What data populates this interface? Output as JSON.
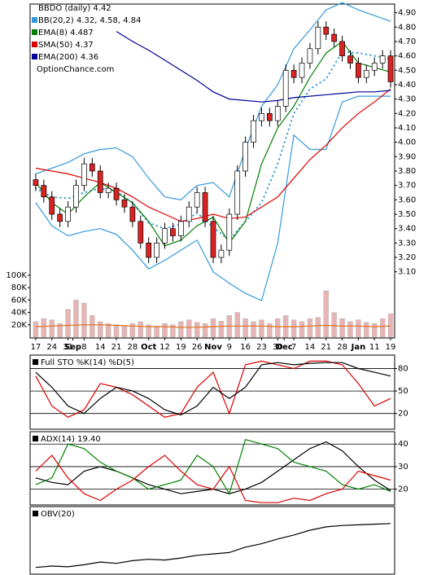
{
  "chart_data": [
    {
      "type": "candlestick",
      "title": "BBDO (daily) 4.42",
      "watermark": "OptionChance.com",
      "x": [
        0,
        0.5,
        1,
        1.5,
        2,
        2.5,
        3,
        3.5,
        4,
        4.5,
        5,
        5.5,
        6,
        6.5,
        7,
        7.5,
        8,
        8.5,
        9,
        9.5,
        10,
        10.5,
        11,
        11.5,
        12,
        12.5,
        13,
        13.5,
        14,
        14.5,
        15,
        15.5,
        16,
        16.5,
        17,
        17.5,
        18,
        18.5,
        19,
        19.5,
        20,
        20.5,
        21,
        21.5,
        22
      ],
      "open": [
        3.74,
        3.7,
        3.62,
        3.5,
        3.45,
        3.55,
        3.7,
        3.85,
        3.8,
        3.65,
        3.68,
        3.6,
        3.55,
        3.45,
        3.3,
        3.2,
        3.3,
        3.4,
        3.35,
        3.45,
        3.55,
        3.65,
        3.45,
        3.2,
        3.25,
        3.5,
        3.8,
        4.0,
        4.15,
        4.2,
        4.15,
        4.25,
        4.5,
        4.45,
        4.55,
        4.65,
        4.8,
        4.75,
        4.7,
        4.6,
        4.55,
        4.45,
        4.5,
        4.55,
        4.6
      ],
      "high": [
        3.78,
        3.74,
        3.66,
        3.54,
        3.59,
        3.74,
        3.89,
        3.89,
        3.84,
        3.72,
        3.72,
        3.64,
        3.59,
        3.49,
        3.34,
        3.34,
        3.44,
        3.44,
        3.49,
        3.59,
        3.69,
        3.69,
        3.49,
        3.29,
        3.54,
        3.84,
        4.04,
        4.19,
        4.24,
        4.24,
        4.29,
        4.54,
        4.54,
        4.59,
        4.69,
        4.84,
        4.84,
        4.79,
        4.74,
        4.64,
        4.59,
        4.54,
        4.59,
        4.64,
        4.64
      ],
      "low": [
        3.66,
        3.58,
        3.46,
        3.41,
        3.41,
        3.51,
        3.66,
        3.76,
        3.61,
        3.61,
        3.56,
        3.51,
        3.41,
        3.26,
        3.16,
        3.16,
        3.26,
        3.31,
        3.31,
        3.41,
        3.51,
        3.41,
        3.16,
        3.16,
        3.21,
        3.46,
        3.76,
        3.96,
        4.11,
        4.11,
        4.11,
        4.21,
        4.41,
        4.41,
        4.51,
        4.61,
        4.71,
        4.66,
        4.56,
        4.51,
        4.41,
        4.41,
        4.46,
        4.51,
        4.38
      ],
      "close": [
        3.7,
        3.62,
        3.5,
        3.45,
        3.55,
        3.7,
        3.85,
        3.8,
        3.65,
        3.68,
        3.6,
        3.55,
        3.45,
        3.3,
        3.2,
        3.3,
        3.4,
        3.35,
        3.45,
        3.55,
        3.65,
        3.45,
        3.2,
        3.25,
        3.5,
        3.8,
        4.0,
        4.15,
        4.2,
        4.15,
        4.25,
        4.5,
        4.45,
        4.55,
        4.65,
        4.8,
        4.75,
        4.7,
        4.6,
        4.55,
        4.45,
        4.5,
        4.55,
        4.6,
        4.42
      ],
      "up_color": "#ffffff",
      "down_color": "#dd2222",
      "xlim": [
        -0.35,
        22.25
      ],
      "ylim": [
        2.64,
        4.96
      ],
      "yticks": [
        {
          "value": 3.1,
          "label": "3.10"
        },
        {
          "value": 3.2,
          "label": "3.20"
        },
        {
          "value": 3.3,
          "label": "3.30"
        },
        {
          "value": 3.4,
          "label": "3.40"
        },
        {
          "value": 3.5,
          "label": "3.50"
        },
        {
          "value": 3.6,
          "label": "3.60"
        },
        {
          "value": 3.7,
          "label": "3.70"
        },
        {
          "value": 3.8,
          "label": "3.80"
        },
        {
          "value": 3.9,
          "label": "3.90"
        },
        {
          "value": 4.0,
          "label": "4.00"
        },
        {
          "value": 4.1,
          "label": "4.10"
        },
        {
          "value": 4.2,
          "label": "4.20"
        },
        {
          "value": 4.3,
          "label": "4.30"
        },
        {
          "value": 4.4,
          "label": "4.40"
        },
        {
          "value": 4.5,
          "label": "4.50"
        },
        {
          "value": 4.6,
          "label": "4.60"
        },
        {
          "value": 4.7,
          "label": "4.70"
        },
        {
          "value": 4.8,
          "label": "4.80"
        },
        {
          "value": 4.9,
          "label": "4.90"
        }
      ],
      "xticks": [
        {
          "value": 0,
          "label": "17"
        },
        {
          "value": 1,
          "label": "24"
        },
        {
          "value": 2,
          "label": "31"
        },
        {
          "value": 2.3,
          "label": "Sep"
        },
        {
          "value": 3,
          "label": "8"
        },
        {
          "value": 4,
          "label": "14"
        },
        {
          "value": 5,
          "label": "21"
        },
        {
          "value": 6,
          "label": "28"
        },
        {
          "value": 7,
          "label": "Oct"
        },
        {
          "value": 8,
          "label": "12"
        },
        {
          "value": 9,
          "label": "19"
        },
        {
          "value": 10,
          "label": "26"
        },
        {
          "value": 11,
          "label": "Nov"
        },
        {
          "value": 12,
          "label": "9"
        },
        {
          "value": 13,
          "label": "16"
        },
        {
          "value": 14,
          "label": "23"
        },
        {
          "value": 15,
          "label": "30"
        },
        {
          "value": 15.4,
          "label": "Dec"
        },
        {
          "value": 16,
          "label": "7"
        },
        {
          "value": 17,
          "label": "14"
        },
        {
          "value": 18,
          "label": "21"
        },
        {
          "value": 19,
          "label": "28"
        },
        {
          "value": 20,
          "label": "Jan"
        },
        {
          "value": 21,
          "label": "11"
        },
        {
          "value": 22,
          "label": "19"
        }
      ],
      "overlay_x": [
        0,
        1,
        2,
        3,
        4,
        5,
        6,
        7,
        8,
        9,
        10,
        11,
        12,
        13,
        14,
        15,
        16,
        17,
        18,
        19,
        20,
        21,
        22
      ],
      "bollinger": {
        "name": "BB(20,2) 4.32, 4.58, 4.84",
        "color": "#3399dd",
        "upper": [
          3.78,
          3.82,
          3.86,
          3.92,
          3.95,
          3.96,
          3.9,
          3.75,
          3.62,
          3.6,
          3.7,
          3.72,
          3.62,
          3.95,
          4.25,
          4.4,
          4.65,
          4.78,
          4.92,
          4.97,
          4.92,
          4.88,
          4.84
        ],
        "middle": [
          3.68,
          3.62,
          3.61,
          3.65,
          3.68,
          3.66,
          3.58,
          3.44,
          3.4,
          3.43,
          3.51,
          3.41,
          3.32,
          3.45,
          3.58,
          3.85,
          4.2,
          4.37,
          4.44,
          4.63,
          4.62,
          4.6,
          4.58
        ],
        "lower": [
          3.58,
          3.42,
          3.35,
          3.38,
          3.4,
          3.36,
          3.25,
          3.12,
          3.18,
          3.25,
          3.32,
          3.1,
          3.02,
          2.95,
          2.9,
          3.3,
          4.05,
          3.95,
          3.95,
          4.28,
          4.32,
          4.32,
          4.32
        ]
      },
      "lines": [
        {
          "name": "EMA(8) 4.487",
          "color": "#008000",
          "values": [
            3.72,
            3.58,
            3.5,
            3.62,
            3.72,
            3.65,
            3.58,
            3.45,
            3.28,
            3.32,
            3.42,
            3.48,
            3.3,
            3.45,
            3.85,
            4.1,
            4.25,
            4.45,
            4.62,
            4.7,
            4.55,
            4.52,
            4.487
          ]
        },
        {
          "name": "SMA(50) 4.37",
          "color": "#dd0000",
          "values": [
            3.82,
            3.8,
            3.78,
            3.75,
            3.72,
            3.68,
            3.62,
            3.55,
            3.5,
            3.45,
            3.47,
            3.5,
            3.47,
            3.48,
            3.55,
            3.62,
            3.75,
            3.88,
            3.98,
            4.1,
            4.2,
            4.28,
            4.37
          ]
        },
        {
          "name": "EMA(200) 4.36",
          "color": "#000099",
          "values": [
            null,
            null,
            null,
            null,
            null,
            4.77,
            4.7,
            4.64,
            4.57,
            4.5,
            4.43,
            4.35,
            4.3,
            4.29,
            4.28,
            4.29,
            4.31,
            4.32,
            4.33,
            4.34,
            4.35,
            4.35,
            4.36
          ]
        }
      ]
    },
    {
      "type": "bar",
      "x": [
        0,
        0.5,
        1,
        1.5,
        2,
        2.5,
        3,
        3.5,
        4,
        4.5,
        5,
        5.5,
        6,
        6.5,
        7,
        7.5,
        8,
        8.5,
        9,
        9.5,
        10,
        10.5,
        11,
        11.5,
        12,
        12.5,
        13,
        13.5,
        14,
        14.5,
        15,
        15.5,
        16,
        16.5,
        17,
        17.5,
        18,
        18.5,
        19,
        19.5,
        20,
        20.5,
        21,
        21.5,
        22
      ],
      "values": [
        25000,
        30000,
        28000,
        22000,
        45000,
        60000,
        55000,
        35000,
        25000,
        22000,
        20000,
        18000,
        22000,
        25000,
        20000,
        18000,
        22000,
        20000,
        25000,
        28000,
        24000,
        22000,
        30000,
        26000,
        35000,
        40000,
        30000,
        25000,
        28000,
        22000,
        30000,
        35000,
        28000,
        25000,
        30000,
        32000,
        75000,
        40000,
        30000,
        25000,
        28000,
        24000,
        22000,
        30000,
        38000
      ],
      "color": "#e6b4b4",
      "xlim": [
        -0.35,
        22.25
      ],
      "ylim": [
        0,
        117000
      ],
      "yticks": [
        {
          "value": 20000,
          "label": "20K"
        },
        {
          "value": 40000,
          "label": "40K"
        },
        {
          "value": 60000,
          "label": "60K"
        },
        {
          "value": 80000,
          "label": "80K"
        },
        {
          "value": 100000,
          "label": "100K"
        }
      ],
      "average": {
        "color": "#e07020",
        "x": [
          0,
          1,
          2,
          3,
          4,
          5,
          6,
          7,
          8,
          9,
          10,
          11,
          12,
          13,
          14,
          15,
          16,
          17,
          18,
          19,
          20,
          21,
          22
        ],
        "values": [
          17000,
          18000,
          19000,
          20000,
          20000,
          19000,
          18000,
          17000,
          17000,
          16000,
          16000,
          17000,
          18000,
          18000,
          18000,
          17000,
          17000,
          18000,
          19000,
          18000,
          18000,
          17000,
          18000
        ]
      }
    },
    {
      "type": "line",
      "title": "Full STO %K(14) %D(5)",
      "x": [
        0,
        1,
        2,
        3,
        4,
        5,
        6,
        7,
        8,
        9,
        10,
        11,
        12,
        13,
        14,
        15,
        16,
        17,
        18,
        19,
        20,
        21,
        22
      ],
      "series": [
        {
          "color": "#dd0000",
          "values": [
            70,
            30,
            15,
            25,
            60,
            55,
            45,
            30,
            15,
            20,
            55,
            75,
            20,
            85,
            90,
            85,
            80,
            90,
            90,
            85,
            60,
            30,
            40
          ]
        },
        {
          "color": "#000000",
          "values": [
            75,
            55,
            30,
            20,
            40,
            55,
            50,
            40,
            25,
            18,
            30,
            55,
            40,
            55,
            85,
            88,
            85,
            87,
            88,
            88,
            80,
            75,
            70
          ]
        }
      ],
      "xlim": [
        -0.35,
        22.25
      ],
      "ylim": [
        -1,
        98
      ],
      "yticks": [
        20,
        50,
        80
      ]
    },
    {
      "type": "line",
      "title": "ADX(14) 19.40",
      "x": [
        0,
        1,
        2,
        3,
        4,
        5,
        6,
        7,
        8,
        9,
        10,
        11,
        12,
        13,
        14,
        15,
        16,
        17,
        18,
        19,
        20,
        21,
        22
      ],
      "series": [
        {
          "color": "#000000",
          "values": [
            25,
            23,
            22,
            28,
            30,
            28,
            25,
            22,
            20,
            18,
            19,
            20,
            18,
            20,
            23,
            28,
            33,
            38,
            41,
            37,
            30,
            24,
            19.4
          ]
        },
        {
          "color": "#008000",
          "values": [
            22,
            25,
            40,
            38,
            32,
            28,
            25,
            20,
            22,
            24,
            35,
            30,
            18,
            42,
            40,
            38,
            32,
            30,
            28,
            22,
            20,
            22,
            19
          ]
        },
        {
          "color": "#dd0000",
          "values": [
            28,
            35,
            25,
            18,
            15,
            20,
            24,
            30,
            35,
            28,
            22,
            20,
            30,
            15,
            14,
            14,
            16,
            15,
            18,
            20,
            28,
            26,
            24
          ]
        }
      ],
      "xlim": [
        -0.35,
        22.25
      ],
      "ylim": [
        13,
        45.5
      ],
      "yticks": [
        20,
        30,
        40
      ]
    },
    {
      "type": "line",
      "title": "OBV(20)",
      "x": [
        0,
        1,
        2,
        3,
        4,
        5,
        6,
        7,
        8,
        9,
        10,
        11,
        12,
        13,
        14,
        15,
        16,
        17,
        18,
        19,
        20,
        21,
        22
      ],
      "series": [
        {
          "color": "#000000",
          "values": [
            10,
            12,
            11,
            14,
            18,
            16,
            20,
            22,
            21,
            24,
            28,
            30,
            32,
            40,
            45,
            52,
            58,
            65,
            70,
            72,
            73,
            74,
            75
          ]
        }
      ],
      "xlim": [
        -0.35,
        22.25
      ],
      "ylim": [
        0,
        100
      ]
    }
  ]
}
